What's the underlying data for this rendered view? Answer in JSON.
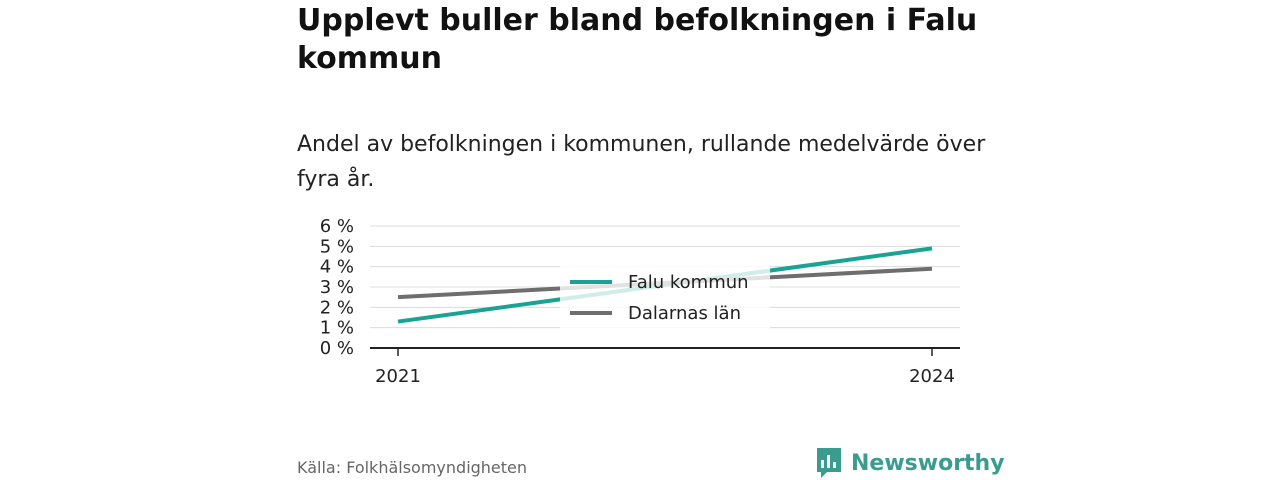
{
  "header": {
    "title": "Upplevt buller bland befolkningen i Falu kommun",
    "subtitle": "Andel av befolkningen i kommunen, rullande medelvärde över fyra år."
  },
  "footer": {
    "source": "Källa: Folkhälsomyndigheten",
    "brand": "Newsworthy",
    "brand_icon": "bar-chart-logo-icon",
    "brand_color": "#3a9c8f"
  },
  "chart_data": {
    "type": "line",
    "x": [
      2021,
      2024
    ],
    "xticks": [
      "2021",
      "2024"
    ],
    "ylim": [
      0,
      6
    ],
    "yticks": [
      "0 %",
      "1 %",
      "2 %",
      "3 %",
      "4 %",
      "5 %",
      "6 %"
    ],
    "grid": true,
    "legend_position": "center",
    "series": [
      {
        "name": "Falu kommun",
        "values": [
          1.3,
          4.9
        ],
        "color": "#1aa394"
      },
      {
        "name": "Dalarnas län",
        "values": [
          2.5,
          3.9
        ],
        "color": "#6e6e6e"
      }
    ]
  }
}
